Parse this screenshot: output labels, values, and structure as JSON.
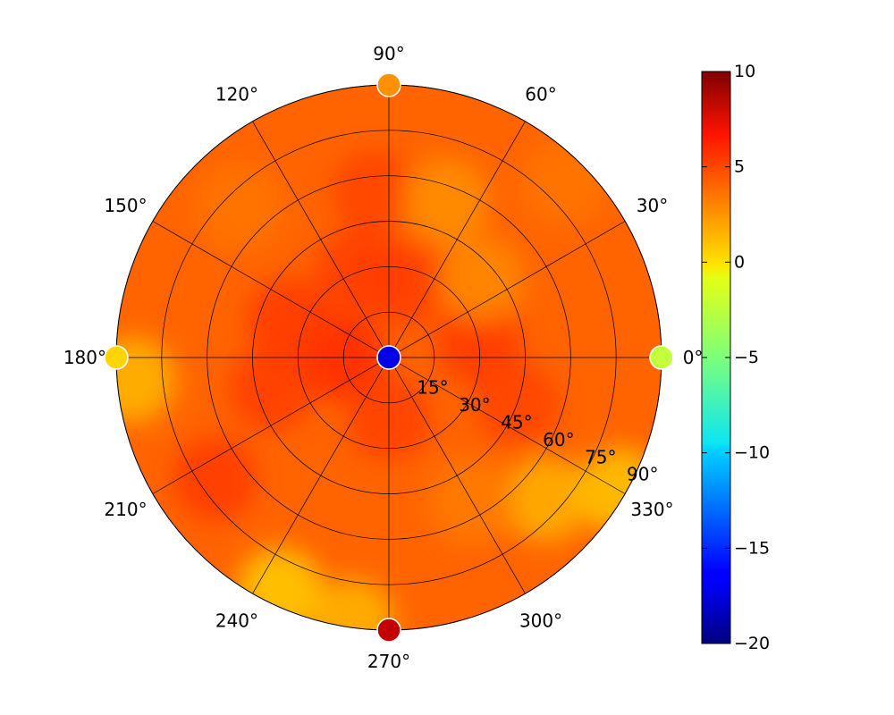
{
  "chart_data": {
    "type": "heatmap",
    "projection": "polar",
    "title": "",
    "angular_ticks": [
      "0°",
      "30°",
      "60°",
      "90°",
      "120°",
      "150°",
      "180°",
      "210°",
      "240°",
      "270°",
      "300°",
      "330°"
    ],
    "angular_tick_values": [
      0,
      30,
      60,
      90,
      120,
      150,
      180,
      210,
      240,
      270,
      300,
      330
    ],
    "radial_ticks": [
      "15°",
      "30°",
      "45°",
      "60°",
      "75°",
      "90°"
    ],
    "radial_tick_values": [
      15,
      30,
      45,
      60,
      75,
      90
    ],
    "rlim": [
      0,
      90
    ],
    "grid": true,
    "colormap": "jet",
    "clim": [
      -20,
      10
    ],
    "colorbar": {
      "ticks": [
        "10",
        "5",
        "0",
        "−5",
        "−10",
        "−15",
        "−20"
      ],
      "tick_values": [
        10,
        5,
        0,
        -5,
        -10,
        -15,
        -20
      ],
      "placement": "right"
    },
    "field_base_value": 3.3,
    "field_patches": [
      {
        "theta": 180,
        "r": 15,
        "value": 5.0
      },
      {
        "theta": 160,
        "r": 35,
        "value": 4.6
      },
      {
        "theta": 195,
        "r": 40,
        "value": 4.5
      },
      {
        "theta": 110,
        "r": 30,
        "value": 4.5
      },
      {
        "theta": 80,
        "r": 25,
        "value": 4.5
      },
      {
        "theta": 10,
        "r": 30,
        "value": 4.6
      },
      {
        "theta": 270,
        "r": 20,
        "value": 4.4
      },
      {
        "theta": 340,
        "r": 45,
        "value": 4.3
      },
      {
        "theta": 95,
        "r": 55,
        "value": 4.3
      },
      {
        "theta": 70,
        "r": 55,
        "value": 2.0
      },
      {
        "theta": 40,
        "r": 40,
        "value": 2.2
      },
      {
        "theta": 185,
        "r": 85,
        "value": 0.8
      },
      {
        "theta": 245,
        "r": 85,
        "value": 0.2
      },
      {
        "theta": 262,
        "r": 88,
        "value": 0.9
      },
      {
        "theta": 318,
        "r": 70,
        "value": 1.0
      },
      {
        "theta": 330,
        "r": 88,
        "value": 0.4
      },
      {
        "theta": 300,
        "r": 55,
        "value": 2.6
      },
      {
        "theta": 215,
        "r": 70,
        "value": 4.6
      },
      {
        "theta": 135,
        "r": 70,
        "value": 2.8
      },
      {
        "theta": 45,
        "r": 82,
        "value": 2.8
      }
    ],
    "markers": [
      {
        "theta": 0,
        "r": 0,
        "value": -17.0
      },
      {
        "theta": 0,
        "r": 90,
        "value": -3.0
      },
      {
        "theta": 90,
        "r": 90,
        "value": 2.0
      },
      {
        "theta": 180,
        "r": 90,
        "value": 0.0
      },
      {
        "theta": 270,
        "r": 90,
        "value": 8.0
      }
    ]
  }
}
